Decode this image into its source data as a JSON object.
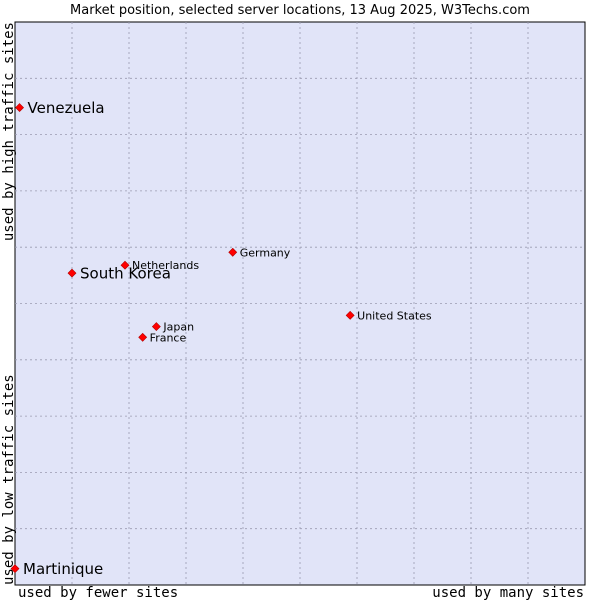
{
  "chart_data": {
    "type": "scatter",
    "title": "Market position, selected server locations, 13 Aug 2025, W3Techs.com",
    "x_axis": {
      "low_label": "used by fewer sites",
      "high_label": "used by many sites"
    },
    "y_axis": {
      "low_label": "used by low traffic sites",
      "high_label": "used by high traffic sites"
    },
    "xlim": [
      0,
      10
    ],
    "ylim": [
      0,
      10
    ],
    "grid": true,
    "marker_color": "#ff0000",
    "plot_bg": "#e1e4f8",
    "points": [
      {
        "name": "Venezuela",
        "x": 0.08,
        "y": 8.48,
        "emphasis": true
      },
      {
        "name": "South Korea",
        "x": 1.0,
        "y": 5.54,
        "emphasis": true
      },
      {
        "name": "Netherlands",
        "x": 1.93,
        "y": 5.68,
        "emphasis": false
      },
      {
        "name": "Germany",
        "x": 3.82,
        "y": 5.91,
        "emphasis": false
      },
      {
        "name": "United States",
        "x": 5.88,
        "y": 4.79,
        "emphasis": false
      },
      {
        "name": "Japan",
        "x": 2.48,
        "y": 4.59,
        "emphasis": false
      },
      {
        "name": "France",
        "x": 2.24,
        "y": 4.4,
        "emphasis": false
      },
      {
        "name": "Martinique",
        "x": 0.0,
        "y": 0.29,
        "emphasis": true
      }
    ]
  }
}
